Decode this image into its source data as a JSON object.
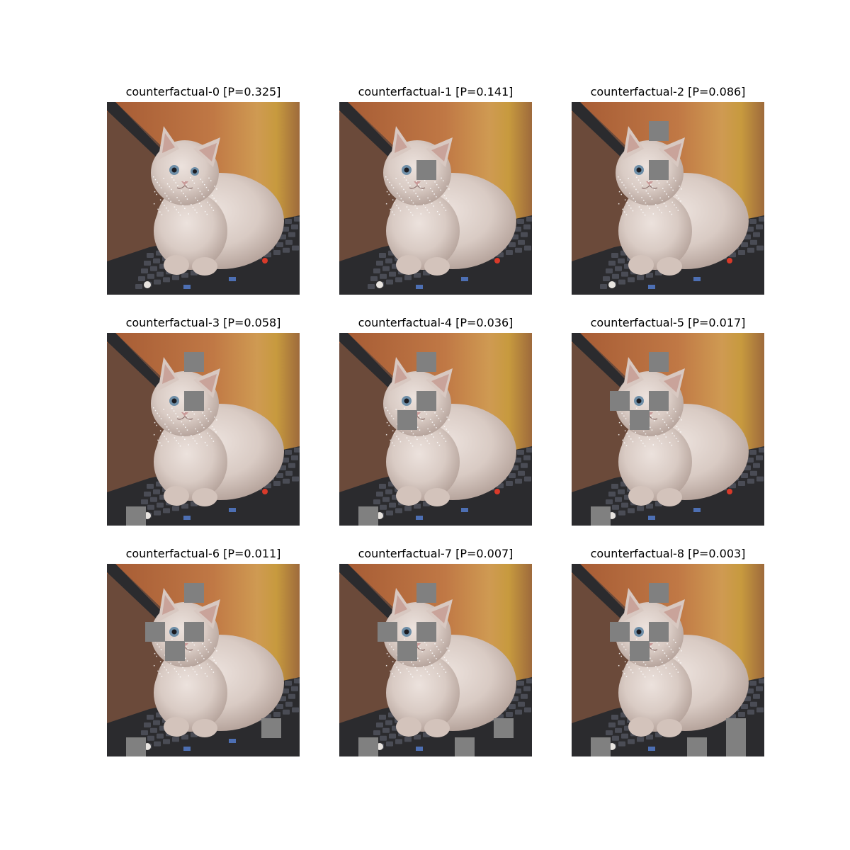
{
  "figure": {
    "panels": [
      {
        "title": "counterfactual-0 [P=0.325]",
        "masks": []
      },
      {
        "title": "counterfactual-1 [P=0.141]",
        "masks": [
          [
            4,
            3
          ]
        ]
      },
      {
        "title": "counterfactual-2 [P=0.086]",
        "masks": [
          [
            4,
            1
          ],
          [
            4,
            3
          ]
        ]
      },
      {
        "title": "counterfactual-3 [P=0.058]",
        "masks": [
          [
            4,
            1
          ],
          [
            4,
            3
          ],
          [
            1,
            9
          ]
        ]
      },
      {
        "title": "counterfactual-4 [P=0.036]",
        "masks": [
          [
            4,
            1
          ],
          [
            4,
            3
          ],
          [
            3,
            4
          ],
          [
            1,
            9
          ]
        ]
      },
      {
        "title": "counterfactual-5 [P=0.017]",
        "masks": [
          [
            4,
            1
          ],
          [
            2,
            3
          ],
          [
            4,
            3
          ],
          [
            3,
            4
          ],
          [
            1,
            9
          ]
        ]
      },
      {
        "title": "counterfactual-6 [P=0.011]",
        "masks": [
          [
            4,
            1
          ],
          [
            2,
            3
          ],
          [
            4,
            3
          ],
          [
            3,
            4
          ],
          [
            1,
            9
          ],
          [
            8,
            8
          ]
        ]
      },
      {
        "title": "counterfactual-7 [P=0.007]",
        "masks": [
          [
            4,
            1
          ],
          [
            2,
            3
          ],
          [
            4,
            3
          ],
          [
            3,
            4
          ],
          [
            1,
            9
          ],
          [
            6,
            9
          ],
          [
            8,
            8
          ]
        ]
      },
      {
        "title": "counterfactual-8 [P=0.003]",
        "masks": [
          [
            4,
            1
          ],
          [
            2,
            3
          ],
          [
            4,
            3
          ],
          [
            3,
            4
          ],
          [
            1,
            9
          ],
          [
            6,
            9
          ],
          [
            8,
            8
          ],
          [
            8,
            9
          ]
        ]
      }
    ]
  },
  "colors": {
    "mask": "#808080",
    "background_wall": "#b5683a",
    "wood_right": "#c79a3e",
    "laptop_dark": "#2b2b2e",
    "cat_fur": "#d9cbc4",
    "cat_shadow": "#b7a59d",
    "eye": "#6f8fa8",
    "nose": "#c89a98",
    "trackpoint": "#d93a2a"
  }
}
